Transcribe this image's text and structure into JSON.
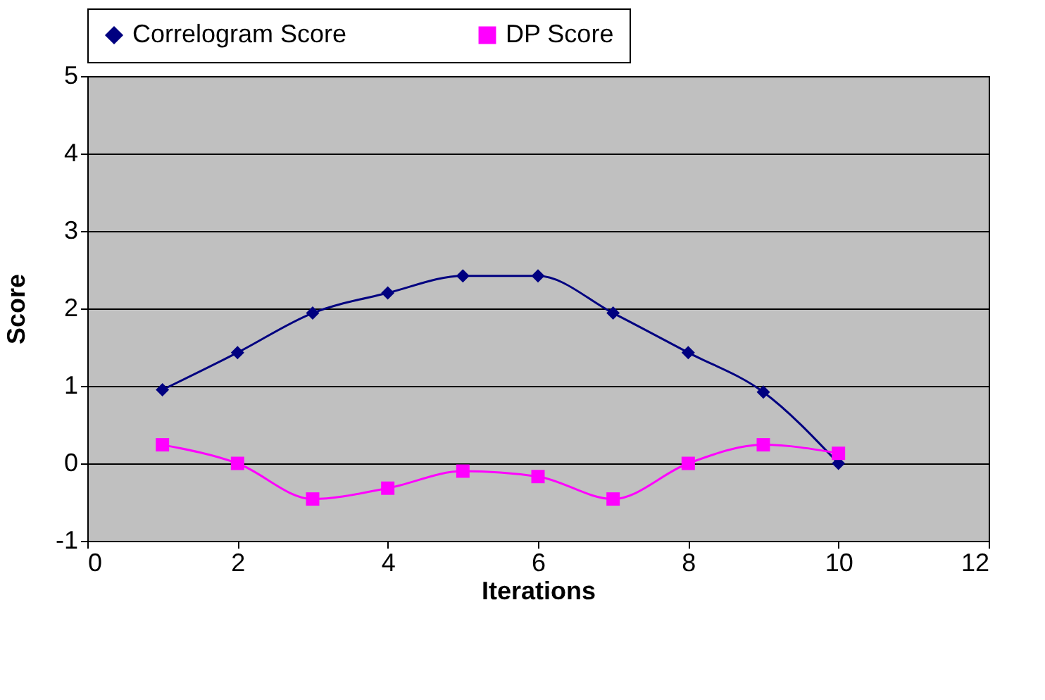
{
  "chart_data": {
    "type": "line",
    "xlabel": "Iterations",
    "ylabel": "Score",
    "x": [
      1,
      2,
      3,
      4,
      5,
      6,
      7,
      8,
      9,
      10
    ],
    "series": [
      {
        "name": "Correlogram Score",
        "color": "#000080",
        "marker": "diamond",
        "values": [
          0.95,
          1.43,
          1.94,
          2.2,
          2.42,
          2.42,
          1.94,
          1.43,
          0.92,
          0
        ]
      },
      {
        "name": "DP Score",
        "color": "#ff00ff",
        "marker": "square",
        "values": [
          0.24,
          0,
          -0.46,
          -0.32,
          -0.1,
          -0.17,
          -0.46,
          0,
          0.24,
          0.13
        ]
      }
    ],
    "xlim": [
      0,
      12
    ],
    "xticks": [
      0,
      2,
      4,
      6,
      8,
      10,
      12
    ],
    "ylim": [
      -1,
      5
    ],
    "yticks": [
      -1,
      0,
      1,
      2,
      3,
      4,
      5
    ],
    "grid": "y",
    "legend": "top",
    "line_style": "solid"
  }
}
